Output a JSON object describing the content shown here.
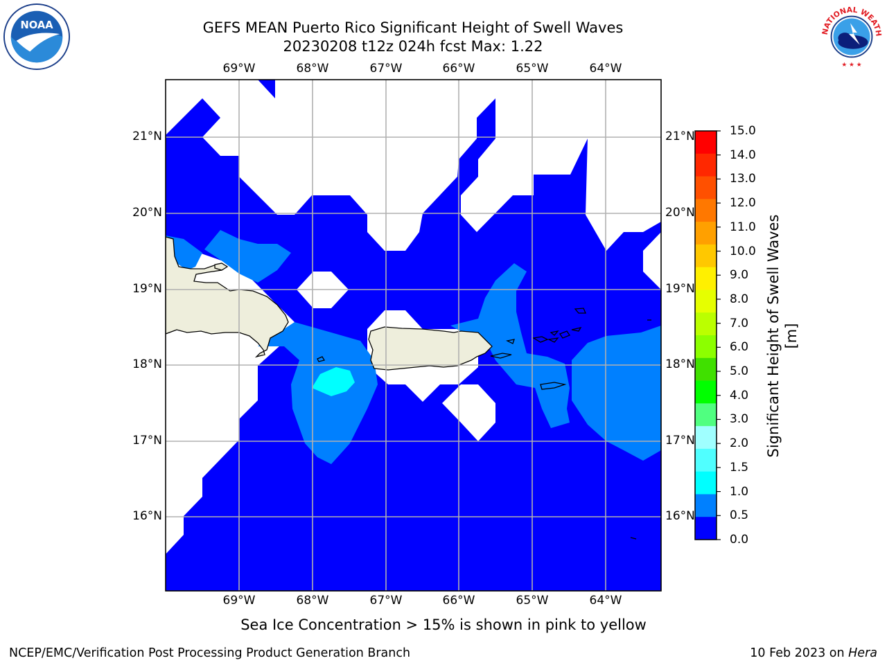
{
  "title": {
    "line1": "GEFS MEAN Puerto Rico Significant Height of Swell Waves",
    "line2": "20230208 t12z 024h fcst   Max: 1.22"
  },
  "map": {
    "lon_labels": [
      "69°W",
      "68°W",
      "67°W",
      "66°W",
      "65°W",
      "64°W"
    ],
    "lat_labels": [
      "21°N",
      "20°N",
      "19°N",
      "18°N",
      "17°N",
      "16°N"
    ],
    "colors": {
      "land": "#eeeedc",
      "band_0_05": "#0000ff",
      "band_05_10": "#0080ff",
      "band_10_15": "#00ffff",
      "grid": "#b0b0b0"
    }
  },
  "colorbar": {
    "label": "Significant Height of Swell Waves [m]",
    "ticks": [
      "15.0",
      "14.0",
      "13.0",
      "12.0",
      "11.0",
      "10.0",
      "9.0",
      "8.0",
      "7.0",
      "6.0",
      "5.0",
      "4.0",
      "3.0",
      "2.0",
      "1.5",
      "1.0",
      "0.5",
      "0.0"
    ],
    "colors_top_to_bottom": [
      "#ff0000",
      "#ff2800",
      "#ff5000",
      "#ff7800",
      "#ffa000",
      "#ffc800",
      "#fff000",
      "#e6ff00",
      "#bbff00",
      "#8cff00",
      "#40e000",
      "#00ff00",
      "#50ff80",
      "#a0ffff",
      "#50ffff",
      "#00ffff",
      "#0080ff",
      "#0000ff"
    ]
  },
  "note": "Sea Ice Concentration > 15% is shown in pink to yellow",
  "footer": {
    "left": "NCEP/EMC/Verification Post Processing Product Generation Branch",
    "right_date": "10 Feb 2023 on ",
    "right_host": "Hera"
  },
  "logos": {
    "left": "noaa-logo",
    "right": "national-weather-service-logo",
    "nws_text": "NATIONAL WEATHER SERVICE"
  }
}
